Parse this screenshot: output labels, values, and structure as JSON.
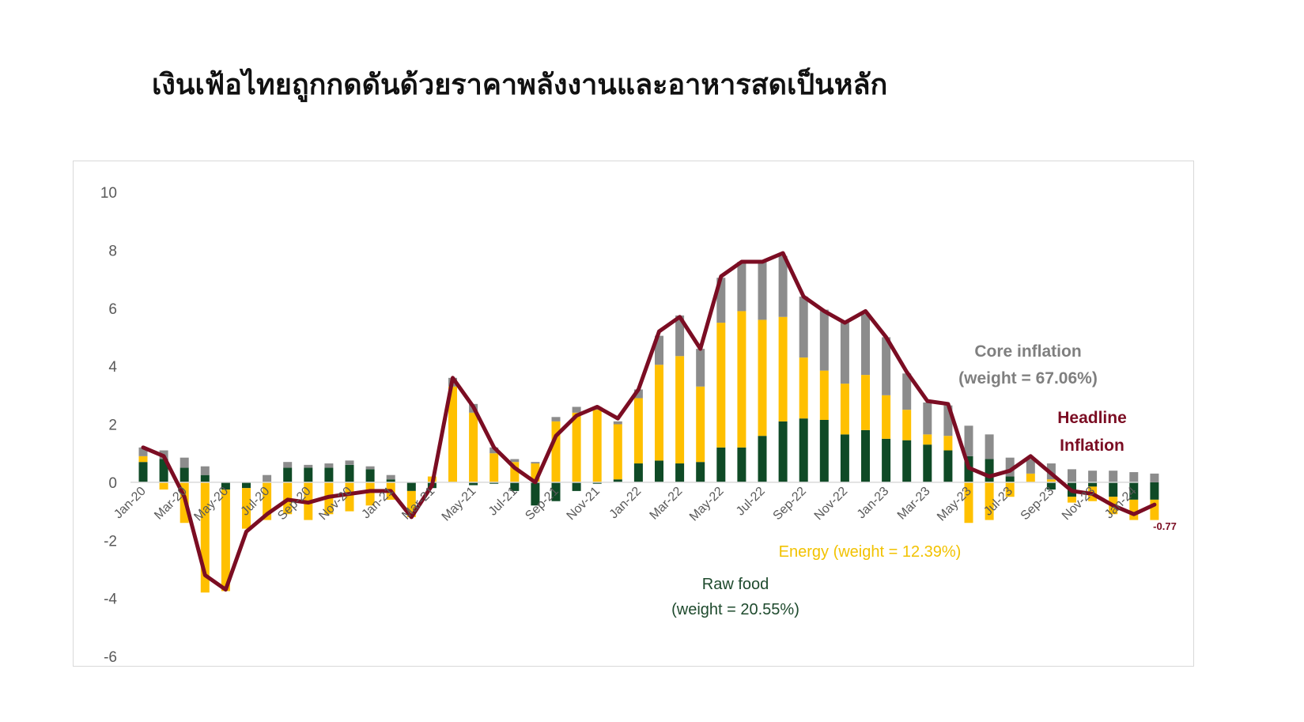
{
  "title": "เงินเฟ้อไทยถูกกดดันด้วยราคาพลังงานและอาหารสดเป็นหลัก",
  "annotations": {
    "core_line1": "Core inflation",
    "core_line2": "(weight = 67.06%)",
    "headline_line1": "Headline",
    "headline_line2": "Inflation",
    "energy": "Energy (weight = 12.39%)",
    "raw_line1": "Raw food",
    "raw_line2": "(weight = 20.55%)",
    "last_value": "-0.77"
  },
  "colors": {
    "raw_food": "#0f4a26",
    "energy": "#ffc000",
    "core": "#8c8c8c",
    "headline": "#7b0d23"
  },
  "chart_data": {
    "type": "bar",
    "stacked": true,
    "ylim": [
      -6,
      10
    ],
    "yticks": [
      -6,
      -4,
      -2,
      0,
      2,
      4,
      6,
      8,
      10
    ],
    "x": [
      "Jan-20",
      "Feb-20",
      "Mar-20",
      "Apr-20",
      "May-20",
      "Jun-20",
      "Jul-20",
      "Aug-20",
      "Sep-20",
      "Oct-20",
      "Nov-20",
      "Dec-20",
      "Jan-21",
      "Feb-21",
      "Mar-21",
      "Apr-21",
      "May-21",
      "Jun-21",
      "Jul-21",
      "Aug-21",
      "Sep-21",
      "Oct-21",
      "Nov-21",
      "Dec-21",
      "Jan-22",
      "Feb-22",
      "Mar-22",
      "Apr-22",
      "May-22",
      "Jun-22",
      "Jul-22",
      "Aug-22",
      "Sep-22",
      "Oct-22",
      "Nov-22",
      "Dec-22",
      "Jan-23",
      "Feb-23",
      "Mar-23",
      "Apr-23",
      "May-23",
      "Jun-23",
      "Jul-23",
      "Aug-23",
      "Sep-23",
      "Oct-23",
      "Nov-23",
      "Dec-23",
      "Jan-24",
      "Feb-24"
    ],
    "xtick_labels": [
      "Jan-20",
      "Mar-20",
      "May-20",
      "Jul-20",
      "Sep-20",
      "Nov-20",
      "Jan-21",
      "Mar-21",
      "May-21",
      "Jul-21",
      "Sep-21",
      "Nov-21",
      "Jan-22",
      "Mar-22",
      "May-22",
      "Jul-22",
      "Sep-22",
      "Nov-22",
      "Jan-23",
      "Mar-23",
      "May-23",
      "Jul-23",
      "Sep-23",
      "Nov-23",
      "Jan-24"
    ],
    "series": [
      {
        "name": "Raw food (weight = 20.55%)",
        "kind": "bar",
        "values": [
          0.7,
          0.8,
          0.5,
          0.25,
          -0.25,
          -0.2,
          0.0,
          0.5,
          0.5,
          0.5,
          0.6,
          0.45,
          0.1,
          -0.3,
          -0.2,
          0.0,
          -0.1,
          -0.05,
          -0.3,
          -0.8,
          -0.65,
          -0.3,
          -0.05,
          0.1,
          0.65,
          0.75,
          0.65,
          0.7,
          1.2,
          1.2,
          1.6,
          2.1,
          2.2,
          2.15,
          1.65,
          1.8,
          1.5,
          1.45,
          1.3,
          1.1,
          0.9,
          0.8,
          0.2,
          0.0,
          -0.25,
          -0.5,
          -0.15,
          -0.5,
          -0.6,
          -0.6
        ]
      },
      {
        "name": "Energy (weight = 12.39%)",
        "kind": "bar",
        "values": [
          0.2,
          -0.25,
          -1.4,
          -3.8,
          -3.5,
          -1.4,
          -1.3,
          -1.1,
          -1.3,
          -1.1,
          -1.0,
          -0.8,
          -0.6,
          -0.9,
          0.2,
          3.3,
          2.4,
          1.0,
          0.7,
          0.65,
          2.1,
          2.4,
          2.5,
          1.9,
          2.25,
          3.3,
          3.7,
          2.6,
          4.3,
          4.7,
          4.0,
          3.6,
          2.1,
          1.7,
          1.75,
          1.9,
          1.5,
          1.05,
          0.35,
          0.5,
          -1.4,
          -1.3,
          -0.5,
          0.3,
          0.1,
          -0.2,
          -0.5,
          -0.6,
          -0.7,
          -0.7
        ]
      },
      {
        "name": "Core inflation (weight = 67.06%)",
        "kind": "bar",
        "values": [
          0.3,
          0.3,
          0.35,
          0.3,
          0.0,
          0.0,
          0.25,
          0.2,
          0.1,
          0.15,
          0.15,
          0.1,
          0.15,
          0.0,
          0.0,
          0.3,
          0.3,
          0.2,
          0.1,
          0.05,
          0.15,
          0.2,
          0.1,
          0.1,
          0.3,
          1.0,
          1.4,
          1.3,
          1.55,
          1.7,
          2.0,
          2.1,
          2.1,
          2.1,
          2.1,
          2.1,
          2.0,
          1.25,
          1.1,
          1.05,
          1.05,
          0.85,
          0.65,
          0.5,
          0.55,
          0.45,
          0.4,
          0.4,
          0.35,
          0.3
        ]
      },
      {
        "name": "Headline Inflation",
        "kind": "line",
        "values": [
          1.2,
          0.9,
          -0.5,
          -3.2,
          -3.7,
          -1.7,
          -1.1,
          -0.6,
          -0.7,
          -0.5,
          -0.4,
          -0.3,
          -0.3,
          -1.2,
          -0.1,
          3.6,
          2.6,
          1.2,
          0.5,
          0.0,
          1.6,
          2.3,
          2.6,
          2.2,
          3.2,
          5.2,
          5.7,
          4.6,
          7.1,
          7.6,
          7.6,
          7.9,
          6.4,
          5.9,
          5.5,
          5.9,
          5.0,
          3.8,
          2.8,
          2.7,
          0.5,
          0.2,
          0.4,
          0.9,
          0.3,
          -0.3,
          -0.4,
          -0.8,
          -1.1,
          -0.77
        ]
      }
    ]
  }
}
